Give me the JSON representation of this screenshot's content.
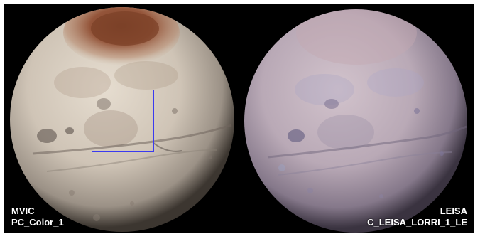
{
  "panels": [
    {
      "instrument": "MVIC",
      "product": "PC_Color_1",
      "colors": {
        "base": "#cfc4b6",
        "cap": "#8a4a2e",
        "limb": "#3c3630"
      }
    },
    {
      "instrument": "LEISA",
      "product": "C_LEISA_LORRI_1_LE",
      "colors": {
        "base": "#b9a9b6",
        "tint": "#9aa6c8",
        "limb": "#3a3340"
      }
    }
  ],
  "overlay": {
    "box_color": "#3a3af0"
  }
}
